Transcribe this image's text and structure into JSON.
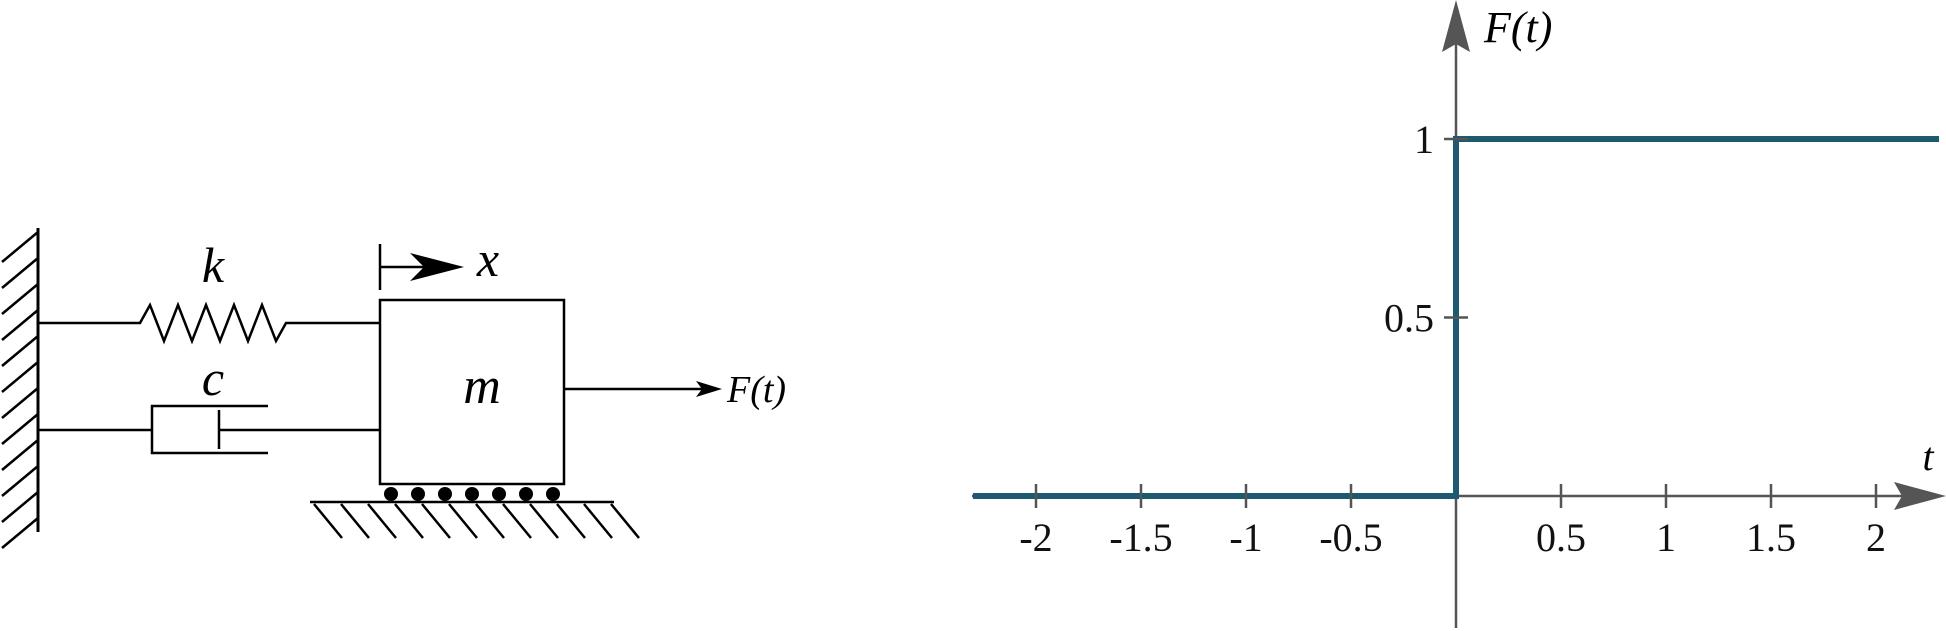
{
  "diagram": {
    "labels": {
      "spring": "k",
      "damper": "c",
      "mass": "m",
      "displacement": "x",
      "force": "F(t)"
    }
  },
  "chart_data": {
    "type": "line",
    "title": "",
    "xlabel": "t",
    "ylabel": "F(t)",
    "xlim": [
      -2.3,
      2.3
    ],
    "ylim": [
      0,
      1
    ],
    "x_ticks": [
      -2,
      -1.5,
      -1,
      -0.5,
      0.5,
      1,
      1.5,
      2
    ],
    "x_tick_labels": [
      "-2",
      "-1.5",
      "-1",
      "-0.5",
      "0.5",
      "1",
      "1.5",
      "2"
    ],
    "y_ticks": [
      0.5,
      1
    ],
    "y_tick_labels": [
      "0.5",
      "1"
    ],
    "grid": false,
    "series": [
      {
        "x": [
          -2.3,
          0,
          0,
          2.3
        ],
        "y": [
          0,
          0,
          1,
          1
        ]
      }
    ],
    "colors": {
      "series": "#1d5a70",
      "axis": "#555555"
    }
  }
}
